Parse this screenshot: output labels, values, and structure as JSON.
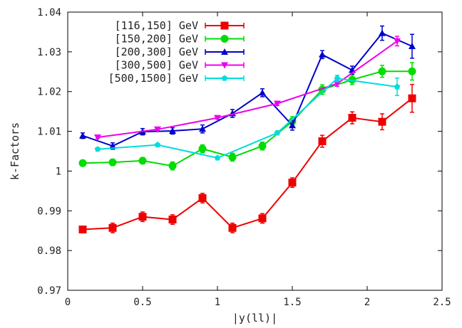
{
  "chart_data": {
    "type": "line",
    "xlabel": "|y(ll)|",
    "ylabel": "k-Factors",
    "xlim": [
      0,
      2.5
    ],
    "ylim": [
      0.97,
      1.04
    ],
    "x_ticks": [
      "0",
      "0.5",
      "1",
      "1.5",
      "2",
      "2.5"
    ],
    "y_ticks": [
      "0.97",
      "0.98",
      "0.99",
      "1",
      "1.01",
      "1.02",
      "1.03",
      "1.04"
    ],
    "grid": false,
    "legend_position": "top-left",
    "series": [
      {
        "name": "[116,150] GeV",
        "color": "#ee0000",
        "marker": "square",
        "x": [
          0.1,
          0.3,
          0.5,
          0.7,
          0.9,
          1.1,
          1.3,
          1.5,
          1.7,
          1.9,
          2.1,
          2.3
        ],
        "y": [
          0.9853,
          0.9857,
          0.9885,
          0.9878,
          0.9932,
          0.9857,
          0.9881,
          0.9971,
          1.0075,
          1.0134,
          1.0124,
          1.0183
        ],
        "err": [
          0.0007,
          0.0012,
          0.0012,
          0.0012,
          0.0012,
          0.0012,
          0.0012,
          0.0012,
          0.0015,
          0.0015,
          0.002,
          0.0035
        ]
      },
      {
        "name": "[150,200] GeV",
        "color": "#00dd00",
        "marker": "circle",
        "x": [
          0.1,
          0.3,
          0.5,
          0.7,
          0.9,
          1.1,
          1.3,
          1.5,
          1.7,
          1.9,
          2.1,
          2.3
        ],
        "y": [
          1.002,
          1.0022,
          1.0026,
          1.0013,
          1.0056,
          1.0035,
          1.0063,
          1.0125,
          1.0205,
          1.023,
          1.0251,
          1.0251
        ],
        "err": [
          0.0007,
          0.0008,
          0.0008,
          0.001,
          0.001,
          0.001,
          0.001,
          0.0012,
          0.0012,
          0.0012,
          0.0015,
          0.0022
        ]
      },
      {
        "name": "[200,300] GeV",
        "color": "#0000cc",
        "marker": "triangle-up",
        "x": [
          0.1,
          0.3,
          0.5,
          0.7,
          0.9,
          1.1,
          1.3,
          1.5,
          1.7,
          1.9,
          2.1,
          2.3
        ],
        "y": [
          1.0089,
          1.0063,
          1.0099,
          1.0101,
          1.0106,
          1.0145,
          1.0197,
          1.0115,
          1.0293,
          1.0254,
          1.0347,
          1.0314
        ],
        "err": [
          0.0007,
          0.0008,
          0.0008,
          0.0008,
          0.001,
          0.001,
          0.001,
          0.0012,
          0.001,
          0.001,
          0.0018,
          0.003
        ]
      },
      {
        "name": "[300,500] GeV",
        "color": "#ee00ee",
        "marker": "triangle-down",
        "x": [
          0.2,
          0.6,
          1.0,
          1.4,
          1.8,
          2.2
        ],
        "y": [
          1.0085,
          1.0105,
          1.0134,
          1.017,
          1.022,
          1.0327
        ],
        "err": [
          0.0003,
          0.0003,
          0.0003,
          0.0005,
          0.0007,
          0.0012
        ]
      },
      {
        "name": "[500,1500] GeV",
        "color": "#00dddd",
        "marker": "pentagon",
        "x": [
          0.2,
          0.6,
          1.0,
          1.4,
          1.8,
          2.2
        ],
        "y": [
          1.0055,
          1.0066,
          1.0033,
          1.0096,
          1.0233,
          1.0212
        ],
        "err": [
          0.0003,
          0.0003,
          0.0003,
          0.0005,
          0.0008,
          0.0022
        ]
      }
    ]
  }
}
